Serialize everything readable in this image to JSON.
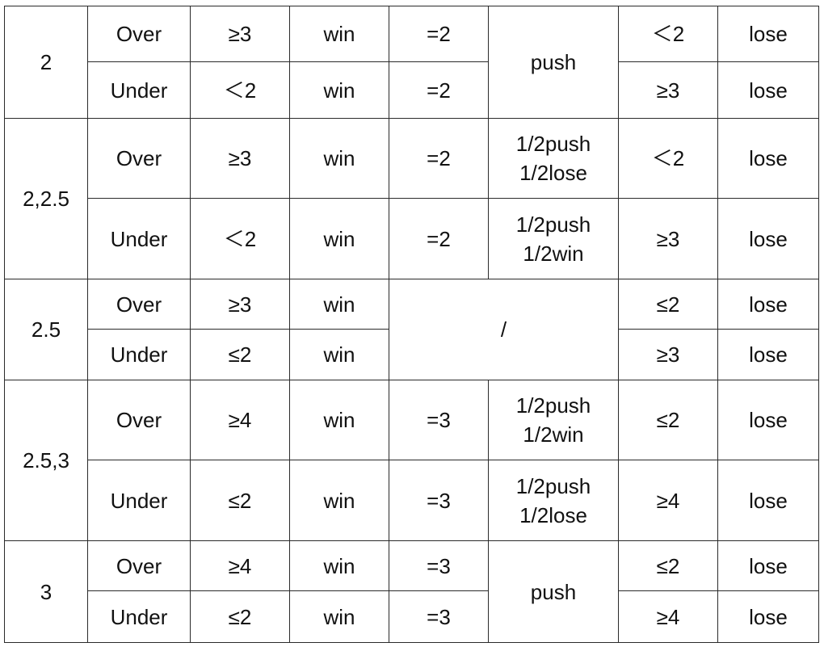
{
  "columns_count": 8,
  "groups": [
    {
      "handicap": "2",
      "rows": [
        {
          "side": "Over",
          "win_cond": "≥3",
          "win_result": "win",
          "mid_cond": "=2",
          "mid_result": "push",
          "lose_cond": "＜2",
          "lose_result": "lose"
        },
        {
          "side": "Under",
          "win_cond": "＜2",
          "win_result": "win",
          "mid_cond": "=2",
          "mid_result": "",
          "lose_cond": "≥3",
          "lose_result": "lose"
        }
      ]
    },
    {
      "handicap": "2,2.5",
      "rows": [
        {
          "side": "Over",
          "win_cond": "≥3",
          "win_result": "win",
          "mid_cond": "=2",
          "mid_result": "1/2push\n1/2lose",
          "lose_cond": "＜2",
          "lose_result": "lose"
        },
        {
          "side": "Under",
          "win_cond": "＜2",
          "win_result": "win",
          "mid_cond": "=2",
          "mid_result": "1/2push\n1/2win",
          "lose_cond": "≥3",
          "lose_result": "lose"
        }
      ]
    },
    {
      "handicap": "2.5",
      "rows": [
        {
          "side": "Over",
          "win_cond": "≥3",
          "win_result": "win",
          "mid_merged": "/",
          "lose_cond": "≤2",
          "lose_result": "lose"
        },
        {
          "side": "Under",
          "win_cond": "≤2",
          "win_result": "win",
          "lose_cond": "≥3",
          "lose_result": "lose"
        }
      ]
    },
    {
      "handicap": "2.5,3",
      "rows": [
        {
          "side": "Over",
          "win_cond": "≥4",
          "win_result": "win",
          "mid_cond": "=3",
          "mid_result": "1/2push\n1/2win",
          "lose_cond": "≤2",
          "lose_result": "lose"
        },
        {
          "side": "Under",
          "win_cond": "≤2",
          "win_result": "win",
          "mid_cond": "=3",
          "mid_result": "1/2push\n1/2lose",
          "lose_cond": "≥4",
          "lose_result": "lose"
        }
      ]
    },
    {
      "handicap": "3",
      "rows": [
        {
          "side": "Over",
          "win_cond": "≥4",
          "win_result": "win",
          "mid_cond": "=3",
          "mid_result": "push",
          "lose_cond": "≤2",
          "lose_result": "lose"
        },
        {
          "side": "Under",
          "win_cond": "≤2",
          "win_result": "win",
          "mid_cond": "=3",
          "mid_result": "",
          "lose_cond": "≥4",
          "lose_result": "lose"
        }
      ]
    }
  ]
}
